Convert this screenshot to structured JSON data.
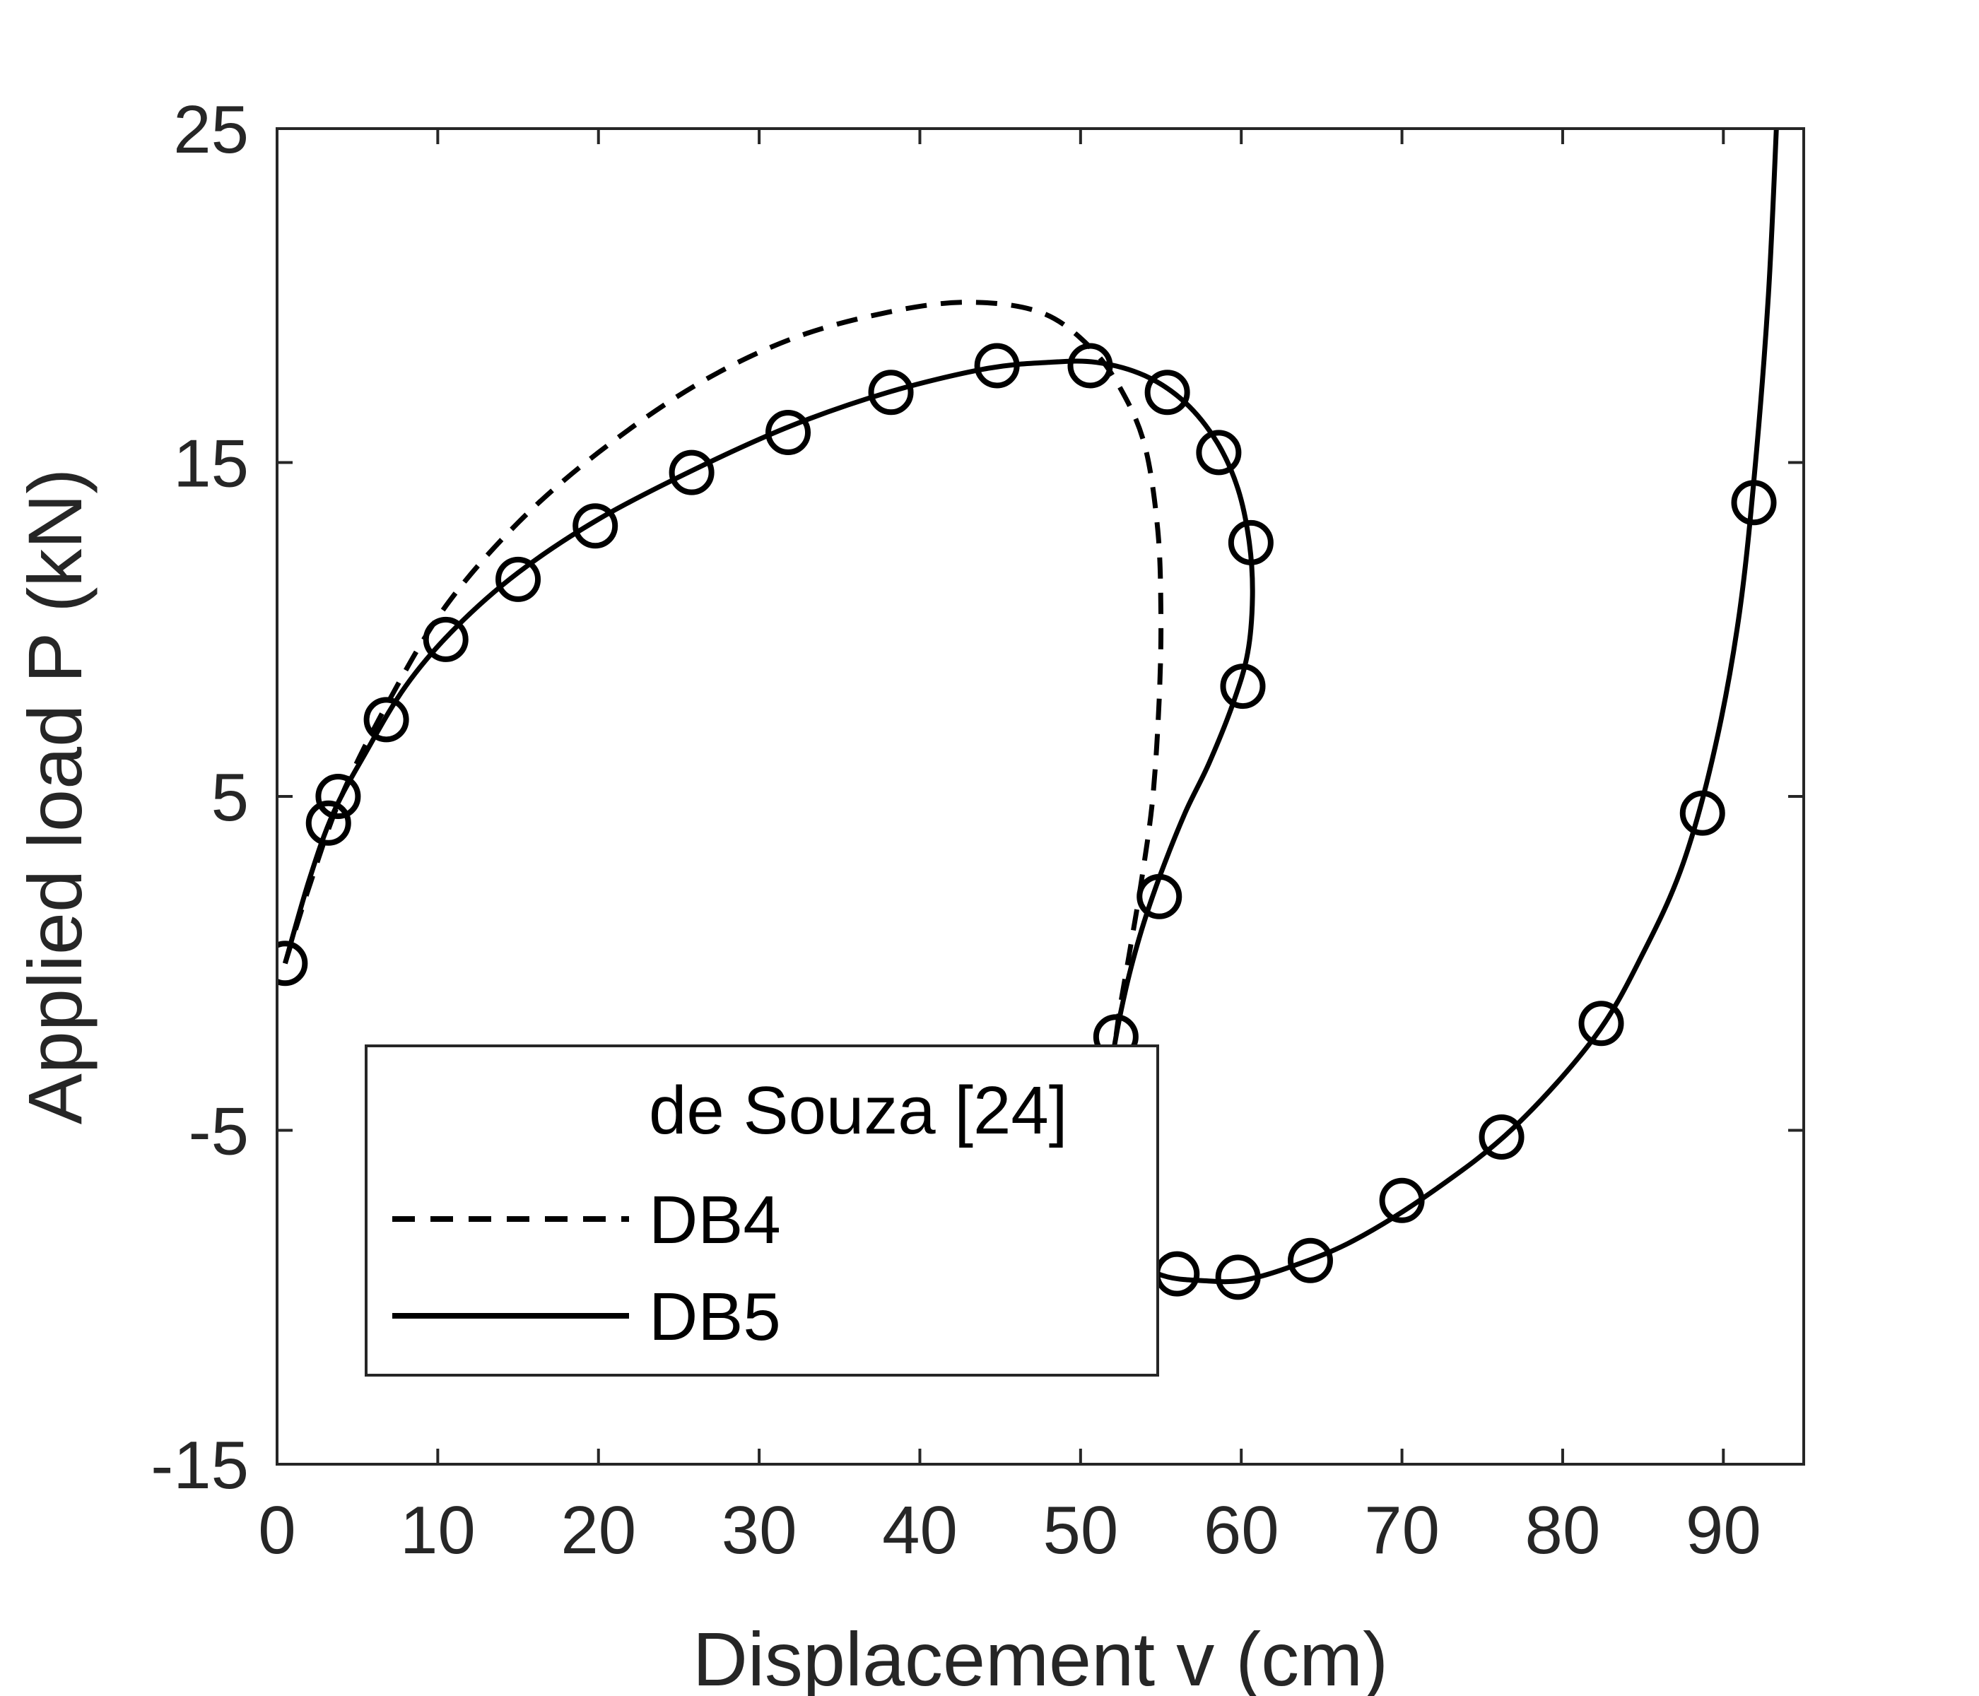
{
  "chart_data": {
    "type": "line",
    "title": "",
    "xlabel": "Displacement v (cm)",
    "ylabel": "Applied load P (kN)",
    "xlim": [
      0,
      95
    ],
    "ylim": [
      -15,
      25
    ],
    "xticks": [
      0,
      10,
      20,
      30,
      40,
      50,
      60,
      70,
      80,
      90
    ],
    "yticks": [
      -15,
      -5,
      5,
      15,
      25
    ],
    "xtick_labels": [
      "0",
      "10",
      "20",
      "30",
      "40",
      "50",
      "60",
      "70",
      "80",
      "90"
    ],
    "ytick_labels": [
      "-15",
      "-5",
      "5",
      "15",
      "25"
    ],
    "grid": false,
    "legend_position": "bottom-left",
    "series": [
      {
        "name": "de Souza [24]",
        "style": "markers-circle",
        "x": [
          0.5,
          3.2,
          3.8,
          6.8,
          10.5,
          15.0,
          19.8,
          25.8,
          31.8,
          38.2,
          44.8,
          50.6,
          55.4,
          58.6,
          60.6,
          60.1,
          54.9,
          52.2,
          51.9,
          56.0,
          59.8,
          64.3,
          70.0,
          76.2,
          82.4,
          88.7,
          91.9
        ],
        "y": [
          0.0,
          4.2,
          5.0,
          7.3,
          9.7,
          11.5,
          13.1,
          14.7,
          15.9,
          17.1,
          17.9,
          17.9,
          17.1,
          15.3,
          12.6,
          8.3,
          2.0,
          -2.2,
          -5.8,
          -9.3,
          -9.4,
          -8.9,
          -7.1,
          -5.2,
          -1.8,
          4.5,
          13.8
        ]
      },
      {
        "name": "DB4",
        "style": "dashed",
        "x": [
          0.5,
          2.0,
          4.0,
          7.0,
          10.5,
          15.0,
          20.0,
          26.0,
          32.0,
          38.0,
          43.0,
          47.5,
          50.5,
          52.5,
          54.0,
          54.8,
          55.0,
          54.9,
          54.5,
          53.8,
          53.0,
          52.4,
          52.0,
          51.8,
          51.7
        ],
        "y": [
          0.0,
          2.3,
          5.0,
          7.9,
          10.7,
          13.2,
          15.3,
          17.3,
          18.7,
          19.5,
          19.8,
          19.5,
          18.5,
          17.2,
          15.5,
          13.0,
          10.5,
          8.0,
          5.0,
          2.5,
          0.2,
          -1.5,
          -3.0,
          -4.0,
          -4.6
        ]
      },
      {
        "name": "DB5",
        "style": "solid",
        "x": [
          0.5,
          2.0,
          3.5,
          5.5,
          8.0,
          11.0,
          15.0,
          20.0,
          26.0,
          32.0,
          38.0,
          44.0,
          48.0,
          51.0,
          54.0,
          56.5,
          58.5,
          59.8,
          60.5,
          60.7,
          60.4,
          59.5,
          58.0,
          56.5,
          55.0,
          53.8,
          52.8,
          52.0,
          51.6,
          51.7,
          52.2,
          53.0,
          54.0,
          55.5,
          57.5,
          60.0,
          63.0,
          67.0,
          72.0,
          77.0,
          82.0,
          85.0,
          87.5,
          89.5,
          91.0,
          92.0,
          92.8,
          93.3
        ],
        "y": [
          0.0,
          2.5,
          4.5,
          6.3,
          8.3,
          10.0,
          11.7,
          13.3,
          14.8,
          16.1,
          17.1,
          17.8,
          18.0,
          18.0,
          17.6,
          16.8,
          15.6,
          14.2,
          12.6,
          11.0,
          9.3,
          7.8,
          6.0,
          4.5,
          2.7,
          1.0,
          -0.8,
          -2.8,
          -4.8,
          -6.6,
          -7.8,
          -8.6,
          -9.1,
          -9.4,
          -9.5,
          -9.5,
          -9.1,
          -8.3,
          -6.8,
          -4.9,
          -2.2,
          0.3,
          3.0,
          6.5,
          10.5,
          15.0,
          20.0,
          25.0
        ]
      }
    ]
  }
}
